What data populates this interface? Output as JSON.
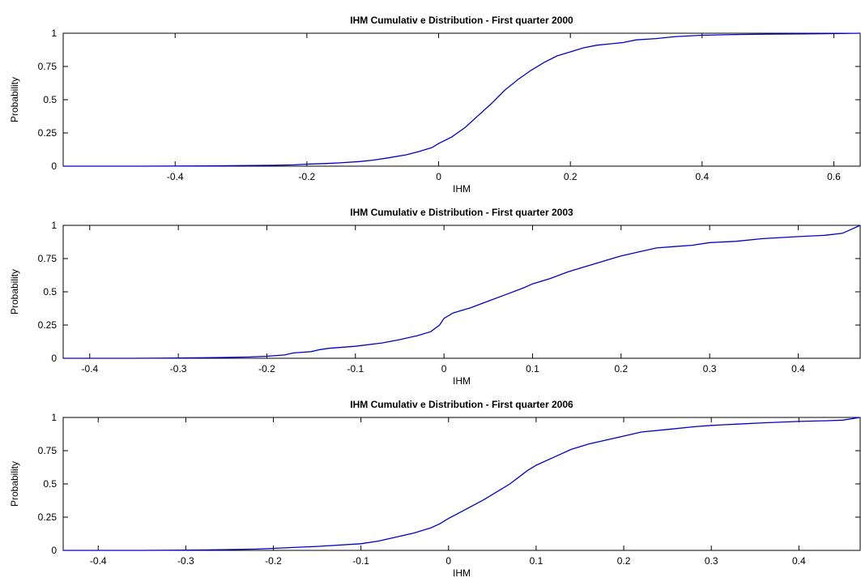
{
  "chart_data": [
    {
      "type": "line",
      "title": "IHM Cumulativ e Distribution - First quarter 2000",
      "xlabel": "IHM",
      "ylabel": "Probability",
      "xlim": [
        -0.57,
        0.64
      ],
      "ylim": [
        0,
        1
      ],
      "xticks": [
        -0.4,
        -0.2,
        0,
        0.2,
        0.4,
        0.6
      ],
      "xtick_labels": [
        "-0.4",
        "-0.2",
        "0",
        "0.2",
        "0.4",
        "0.6"
      ],
      "yticks": [
        0,
        0.25,
        0.5,
        0.75,
        1
      ],
      "ytick_labels": [
        "0",
        "0.25",
        "0.5",
        "0.75",
        "1"
      ],
      "grid": false,
      "color": "#0000cc",
      "series": [
        {
          "x": [
            -0.57,
            -0.45,
            -0.35,
            -0.3,
            -0.25,
            -0.22,
            -0.2,
            -0.17,
            -0.15,
            -0.12,
            -0.1,
            -0.08,
            -0.05,
            -0.03,
            -0.01,
            0.0,
            0.02,
            0.04,
            0.06,
            0.08,
            0.1,
            0.12,
            0.14,
            0.16,
            0.18,
            0.2,
            0.22,
            0.24,
            0.26,
            0.28,
            0.3,
            0.33,
            0.36,
            0.4,
            0.45,
            0.5,
            0.55,
            0.6,
            0.64
          ],
          "y": [
            0,
            0,
            0.002,
            0.004,
            0.007,
            0.01,
            0.015,
            0.02,
            0.025,
            0.035,
            0.045,
            0.06,
            0.085,
            0.11,
            0.14,
            0.17,
            0.22,
            0.29,
            0.38,
            0.47,
            0.57,
            0.65,
            0.72,
            0.78,
            0.83,
            0.86,
            0.89,
            0.91,
            0.92,
            0.93,
            0.95,
            0.96,
            0.975,
            0.985,
            0.99,
            0.993,
            0.995,
            0.997,
            1.0
          ]
        }
      ]
    },
    {
      "type": "line",
      "title": "IHM Cumulativ e Distribution - First quarter 2003",
      "xlabel": "IHM",
      "ylabel": "Probability",
      "xlim": [
        -0.43,
        0.47
      ],
      "ylim": [
        0,
        1
      ],
      "xticks": [
        -0.4,
        -0.3,
        -0.2,
        -0.1,
        0,
        0.1,
        0.2,
        0.3,
        0.4
      ],
      "xtick_labels": [
        "-0.4",
        "-0.3",
        "-0.2",
        "-0.1",
        "0",
        "0.1",
        "0.2",
        "0.3",
        "0.4"
      ],
      "yticks": [
        0,
        0.25,
        0.5,
        0.75,
        1
      ],
      "ytick_labels": [
        "0",
        "0.25",
        "0.5",
        "0.75",
        "1"
      ],
      "grid": false,
      "color": "#0000cc",
      "series": [
        {
          "x": [
            -0.43,
            -0.35,
            -0.3,
            -0.25,
            -0.22,
            -0.2,
            -0.18,
            -0.17,
            -0.16,
            -0.15,
            -0.14,
            -0.13,
            -0.1,
            -0.07,
            -0.05,
            -0.03,
            -0.015,
            -0.005,
            0.0,
            0.01,
            0.03,
            0.05,
            0.07,
            0.09,
            0.1,
            0.12,
            0.14,
            0.16,
            0.18,
            0.2,
            0.22,
            0.24,
            0.26,
            0.28,
            0.3,
            0.33,
            0.36,
            0.4,
            0.43,
            0.45,
            0.47
          ],
          "y": [
            0,
            0,
            0.002,
            0.006,
            0.01,
            0.015,
            0.025,
            0.04,
            0.045,
            0.05,
            0.065,
            0.075,
            0.09,
            0.115,
            0.14,
            0.17,
            0.2,
            0.25,
            0.3,
            0.34,
            0.38,
            0.43,
            0.48,
            0.53,
            0.56,
            0.6,
            0.65,
            0.69,
            0.73,
            0.77,
            0.8,
            0.83,
            0.84,
            0.85,
            0.87,
            0.88,
            0.9,
            0.915,
            0.925,
            0.94,
            1.0
          ]
        }
      ]
    },
    {
      "type": "line",
      "title": "IHM Cumulativ e Distribution - First quarter 2006",
      "xlabel": "IHM",
      "ylabel": "Probability",
      "xlim": [
        -0.44,
        0.47
      ],
      "ylim": [
        0,
        1
      ],
      "xticks": [
        -0.4,
        -0.3,
        -0.2,
        -0.1,
        0,
        0.1,
        0.2,
        0.3,
        0.4
      ],
      "xtick_labels": [
        "-0.4",
        "-0.3",
        "-0.2",
        "-0.1",
        "0",
        "0.1",
        "0.2",
        "0.3",
        "0.4"
      ],
      "yticks": [
        0,
        0.25,
        0.5,
        0.75,
        1
      ],
      "ytick_labels": [
        "0",
        "0.25",
        "0.5",
        "0.75",
        "1"
      ],
      "grid": false,
      "color": "#0000cc",
      "series": [
        {
          "x": [
            -0.44,
            -0.35,
            -0.3,
            -0.25,
            -0.22,
            -0.2,
            -0.15,
            -0.1,
            -0.08,
            -0.06,
            -0.04,
            -0.02,
            -0.01,
            0.0,
            0.02,
            0.04,
            0.06,
            0.07,
            0.08,
            0.09,
            0.1,
            0.12,
            0.14,
            0.16,
            0.18,
            0.2,
            0.22,
            0.25,
            0.28,
            0.3,
            0.33,
            0.36,
            0.4,
            0.43,
            0.45,
            0.47
          ],
          "y": [
            0,
            0,
            0.002,
            0.006,
            0.01,
            0.015,
            0.03,
            0.05,
            0.07,
            0.1,
            0.13,
            0.17,
            0.2,
            0.24,
            0.31,
            0.38,
            0.46,
            0.5,
            0.55,
            0.6,
            0.64,
            0.7,
            0.76,
            0.8,
            0.83,
            0.86,
            0.89,
            0.91,
            0.93,
            0.94,
            0.95,
            0.96,
            0.97,
            0.975,
            0.98,
            1.0
          ]
        }
      ]
    }
  ]
}
